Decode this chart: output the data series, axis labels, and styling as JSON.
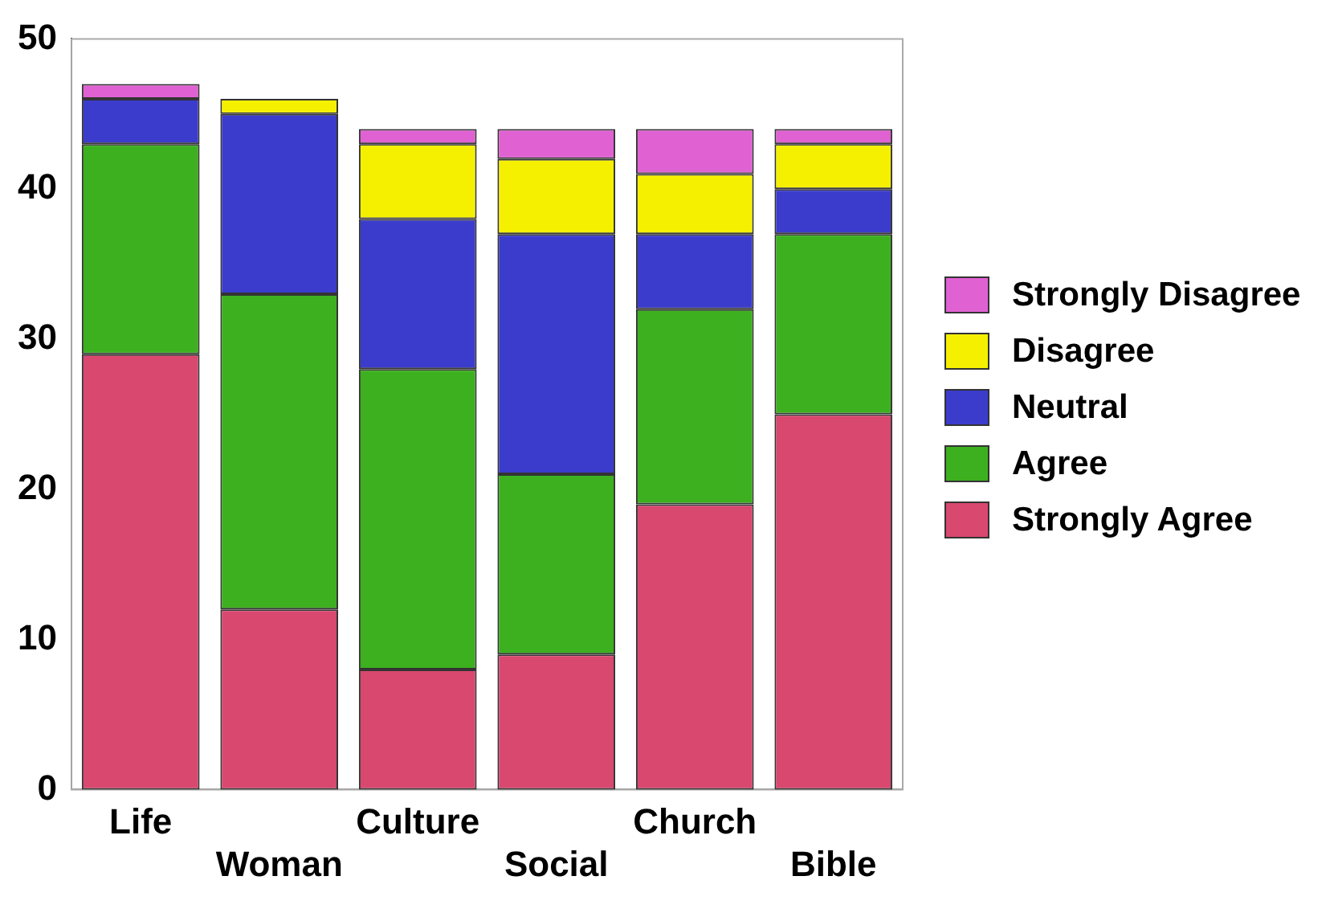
{
  "chart_data": {
    "type": "bar",
    "stacked": true,
    "categories": [
      "Life",
      "Woman",
      "Culture",
      "Social",
      "Church",
      "Bible"
    ],
    "series": [
      {
        "name": "Strongly Agree",
        "color": "#d9486f",
        "values": [
          29,
          12,
          8,
          9,
          19,
          25
        ]
      },
      {
        "name": "Agree",
        "color": "#3db01f",
        "values": [
          14,
          21,
          20,
          12,
          13,
          12
        ]
      },
      {
        "name": "Neutral",
        "color": "#3b3ccc",
        "values": [
          3,
          12,
          10,
          16,
          5,
          3
        ]
      },
      {
        "name": "Disagree",
        "color": "#f5f000",
        "values": [
          0,
          1,
          5,
          5,
          4,
          3
        ]
      },
      {
        "name": "Strongly Disagree",
        "color": "#e062d2",
        "values": [
          1,
          0,
          1,
          2,
          3,
          1
        ]
      }
    ],
    "ylim": [
      0,
      50
    ],
    "yticks": [
      0,
      10,
      20,
      30,
      40,
      50
    ],
    "grid": false,
    "legend": "right"
  }
}
